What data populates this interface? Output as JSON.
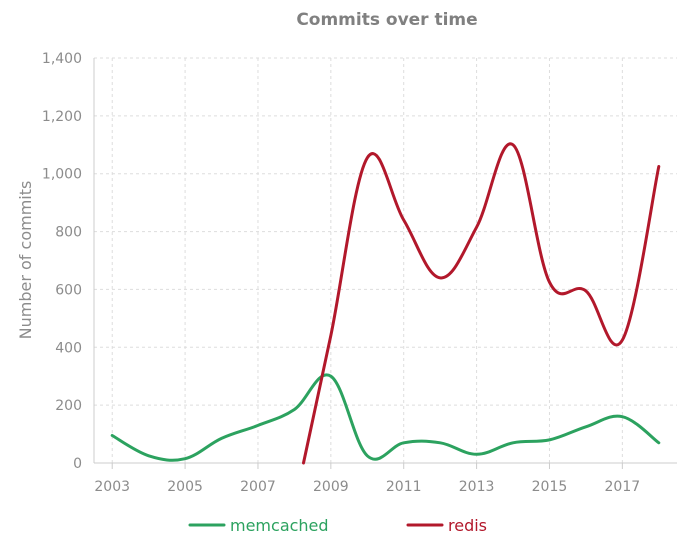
{
  "chart_data": {
    "type": "line",
    "title": "Commits over time",
    "xlabel": "",
    "ylabel": "Number of commits",
    "xlim": [
      2002.5,
      2018.5
    ],
    "ylim": [
      0,
      1400
    ],
    "x_ticks": [
      2003,
      2005,
      2007,
      2009,
      2011,
      2013,
      2015,
      2017
    ],
    "y_ticks": [
      0,
      200,
      400,
      600,
      800,
      1000,
      1200,
      1400
    ],
    "y_tick_labels": [
      "0",
      "200",
      "400",
      "600",
      "800",
      "1,000",
      "1,200",
      "1,400"
    ],
    "x": [
      2003,
      2004,
      2005,
      2006,
      2007,
      2008,
      2009,
      2010,
      2011,
      2012,
      2013,
      2014,
      2015,
      2016,
      2017,
      2018
    ],
    "series": [
      {
        "name": "memcached",
        "color": "#2ca25f",
        "x": [
          2003,
          2004,
          2005,
          2006,
          2007,
          2008,
          2009,
          2010,
          2011,
          2012,
          2013,
          2014,
          2015,
          2016,
          2017,
          2018
        ],
        "values": [
          95,
          25,
          15,
          85,
          130,
          185,
          300,
          25,
          70,
          70,
          30,
          70,
          80,
          125,
          160,
          70
        ]
      },
      {
        "name": "redis",
        "color": "#b2182b",
        "x": [
          2008.25,
          2009,
          2010,
          2011,
          2012,
          2013,
          2014,
          2015,
          2016,
          2017,
          2018
        ],
        "values": [
          0,
          440,
          1055,
          840,
          640,
          815,
          1100,
          625,
          595,
          425,
          1025
        ]
      }
    ],
    "grid": true,
    "legend": "bottom"
  }
}
